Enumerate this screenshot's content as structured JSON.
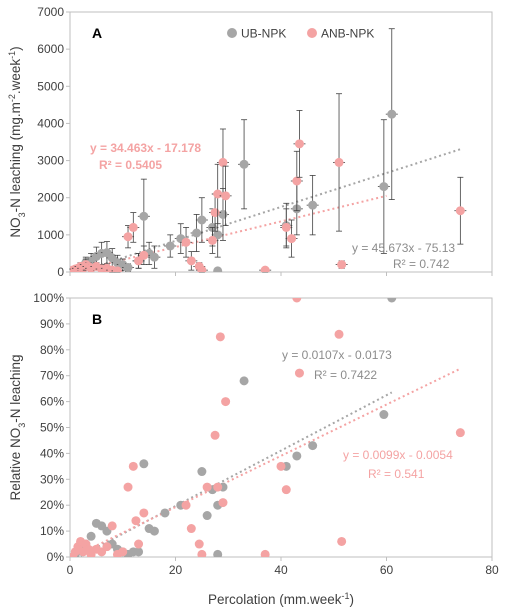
{
  "colors": {
    "ub": "#a6a6a6",
    "anb": "#f4a3a3",
    "ub_fit_text": "#8c8c8c",
    "anb_fit_text": "#f4a3a3",
    "axis": "#bfbfbf",
    "grid": "#ffffff",
    "text": "#404040"
  },
  "chart_data": [
    {
      "type": "scatter",
      "panel_label": "A",
      "xlim": [
        0,
        80
      ],
      "ylim": [
        0,
        7000
      ],
      "y_ticks": [
        0,
        1000,
        2000,
        3000,
        4000,
        5000,
        6000,
        7000
      ],
      "y_tick_labels": [
        "0",
        "1000",
        "2000",
        "3000",
        "4000",
        "5000",
        "6000",
        "7000"
      ],
      "ylabel_parts": [
        "NO",
        "3",
        "-N leaching (mg.m",
        "-2",
        ".week",
        "-1",
        ")"
      ],
      "legend_position": "top-center",
      "error_bars": true,
      "series": [
        {
          "name": "UB-NPK",
          "color_key": "ub",
          "points": [
            [
              1,
              50,
              0
            ],
            [
              2,
              120,
              60
            ],
            [
              3,
              250,
              150
            ],
            [
              4,
              300,
              200
            ],
            [
              5,
              420,
              250
            ],
            [
              6,
              500,
              300
            ],
            [
              7,
              520,
              300
            ],
            [
              8,
              380,
              250
            ],
            [
              9,
              250,
              200
            ],
            [
              10,
              200,
              150
            ],
            [
              11,
              120,
              100
            ],
            [
              13,
              300,
              200
            ],
            [
              14,
              1500,
              1000
            ],
            [
              15,
              500,
              300
            ],
            [
              16,
              400,
              300
            ],
            [
              19,
              700,
              300
            ],
            [
              21,
              900,
              400
            ],
            [
              24,
              1050,
              500
            ],
            [
              25,
              1400,
              600
            ],
            [
              27,
              1200,
              500
            ],
            [
              28,
              30,
              0
            ],
            [
              28,
              1000,
              600
            ],
            [
              29,
              1550,
              700
            ],
            [
              33,
              2900,
              1200
            ],
            [
              41,
              1250,
              600
            ],
            [
              43,
              1700,
              700
            ],
            [
              46,
              1800,
              800
            ],
            [
              59.5,
              2300,
              1800
            ],
            [
              61,
              4250,
              2300
            ]
          ],
          "fit": {
            "equation": "y = 45.673x - 75.13",
            "r2": "R² = 0.742",
            "slope": 45.673,
            "intercept": -75.13,
            "x_range": [
              5,
              74
            ]
          }
        },
        {
          "name": "ANB-NPK",
          "color_key": "anb",
          "points": [
            [
              0.5,
              50,
              0
            ],
            [
              1,
              80,
              50
            ],
            [
              1.5,
              100,
              60
            ],
            [
              2,
              150,
              100
            ],
            [
              2.5,
              100,
              80
            ],
            [
              3,
              200,
              150
            ],
            [
              3.5,
              150,
              100
            ],
            [
              4,
              100,
              80
            ],
            [
              5,
              150,
              100
            ],
            [
              6,
              80,
              60
            ],
            [
              7,
              100,
              80
            ],
            [
              8,
              50,
              50
            ],
            [
              9,
              30,
              30
            ],
            [
              11,
              950,
              300
            ],
            [
              12,
              1200,
              400
            ],
            [
              13,
              300,
              200
            ],
            [
              14,
              450,
              250
            ],
            [
              22,
              800,
              400
            ],
            [
              23,
              300,
              250
            ],
            [
              24.5,
              150,
              100
            ],
            [
              25,
              50,
              50
            ],
            [
              27,
              850,
              350
            ],
            [
              27.5,
              1600,
              500
            ],
            [
              28,
              2100,
              800
            ],
            [
              29,
              2950,
              900
            ],
            [
              29.5,
              2050,
              800
            ],
            [
              37,
              50,
              50
            ],
            [
              41,
              1200,
              500
            ],
            [
              42,
              900,
              500
            ],
            [
              43,
              2450,
              800
            ],
            [
              43.5,
              3450,
              900
            ],
            [
              51,
              2950,
              1850
            ],
            [
              51.5,
              200,
              100
            ],
            [
              74,
              1650,
              900
            ]
          ],
          "fit": {
            "equation": "y = 34.463x - 17.178",
            "r2": "R² = 0.5405",
            "slope": 34.463,
            "intercept": -17.178,
            "x_range": [
              0,
              60
            ]
          }
        }
      ]
    },
    {
      "type": "scatter",
      "panel_label": "B",
      "xlim": [
        0,
        80
      ],
      "ylim": [
        0,
        100
      ],
      "x_ticks": [
        0,
        20,
        40,
        60,
        80
      ],
      "x_tick_labels": [
        "0",
        "20",
        "40",
        "60",
        "80"
      ],
      "y_ticks": [
        0,
        10,
        20,
        30,
        40,
        50,
        60,
        70,
        80,
        90,
        100
      ],
      "y_tick_labels": [
        "0%",
        "10%",
        "20%",
        "30%",
        "40%",
        "50%",
        "60%",
        "70%",
        "80%",
        "90%",
        "100%"
      ],
      "ylabel_parts": [
        "Relative NO",
        "3",
        "-N leaching"
      ],
      "xlabel_parts": [
        "Percolation (mm.week",
        "-1",
        ")"
      ],
      "series": [
        {
          "name": "UB-NPK",
          "color_key": "ub",
          "points": [
            [
              1,
              1
            ],
            [
              2,
              3
            ],
            [
              3,
              5
            ],
            [
              4,
              8
            ],
            [
              5,
              13
            ],
            [
              6,
              12
            ],
            [
              7,
              10
            ],
            [
              8,
              5
            ],
            [
              9,
              3
            ],
            [
              10,
              2
            ],
            [
              11,
              1
            ],
            [
              12,
              2
            ],
            [
              13,
              2
            ],
            [
              14,
              36
            ],
            [
              15,
              11
            ],
            [
              16,
              10
            ],
            [
              18,
              17
            ],
            [
              21,
              20
            ],
            [
              25,
              33
            ],
            [
              26,
              16
            ],
            [
              27,
              26
            ],
            [
              28,
              1
            ],
            [
              28,
              20
            ],
            [
              29,
              27
            ],
            [
              33,
              68
            ],
            [
              41,
              35
            ],
            [
              43,
              39
            ],
            [
              46,
              43
            ],
            [
              59.5,
              55
            ],
            [
              61,
              100
            ]
          ],
          "fit": {
            "equation": "y = 0.0107x - 0.0173",
            "r2": "R² = 0.7422",
            "slope": 1.07,
            "intercept": -1.73,
            "x_range": [
              2,
              61
            ]
          }
        },
        {
          "name": "ANB-NPK",
          "color_key": "anb",
          "points": [
            [
              0.5,
              0
            ],
            [
              1,
              2
            ],
            [
              1.5,
              4
            ],
            [
              2,
              6
            ],
            [
              2.5,
              2
            ],
            [
              3,
              5
            ],
            [
              3.5,
              3
            ],
            [
              4,
              1
            ],
            [
              5,
              3
            ],
            [
              6,
              2
            ],
            [
              7,
              4
            ],
            [
              8,
              12
            ],
            [
              9,
              1
            ],
            [
              10,
              2
            ],
            [
              11,
              27
            ],
            [
              12,
              35
            ],
            [
              12.5,
              14
            ],
            [
              13,
              5
            ],
            [
              14,
              17
            ],
            [
              22,
              20
            ],
            [
              23,
              11
            ],
            [
              24.5,
              5
            ],
            [
              25,
              1
            ],
            [
              26,
              27
            ],
            [
              27.5,
              47
            ],
            [
              28,
              27
            ],
            [
              28.5,
              85
            ],
            [
              29,
              21
            ],
            [
              29.5,
              60
            ],
            [
              37,
              1
            ],
            [
              40,
              35
            ],
            [
              41,
              26
            ],
            [
              43,
              100
            ],
            [
              43.5,
              71
            ],
            [
              51,
              86
            ],
            [
              51.5,
              6
            ],
            [
              74,
              48
            ]
          ],
          "fit": {
            "equation": "y = 0.0099x - 0.0054",
            "r2": "R² = 0.541",
            "slope": 0.99,
            "intercept": -0.54,
            "x_range": [
              0,
              74
            ]
          }
        }
      ]
    }
  ]
}
